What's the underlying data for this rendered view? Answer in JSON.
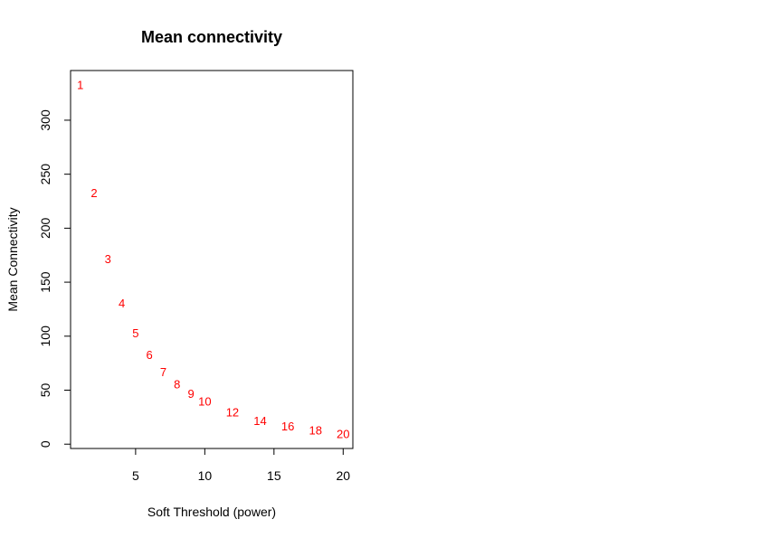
{
  "chart_data": {
    "type": "scatter",
    "title": "Mean connectivity",
    "xlabel": "Soft Threshold (power)",
    "ylabel": "Mean Connectivity",
    "xlim": [
      0.3,
      20.7
    ],
    "ylim": [
      -4,
      346
    ],
    "x_ticks": [
      5,
      10,
      15,
      20
    ],
    "y_ticks": [
      0,
      50,
      100,
      150,
      200,
      250,
      300
    ],
    "grid": false,
    "legend": "none",
    "marker": "text-label",
    "point_color": "#ff0000",
    "points": [
      {
        "x": 1,
        "y": 333,
        "label": "1"
      },
      {
        "x": 2,
        "y": 233,
        "label": "2"
      },
      {
        "x": 3,
        "y": 172,
        "label": "3"
      },
      {
        "x": 4,
        "y": 131,
        "label": "4"
      },
      {
        "x": 5,
        "y": 103,
        "label": "5"
      },
      {
        "x": 6,
        "y": 83,
        "label": "6"
      },
      {
        "x": 7,
        "y": 67,
        "label": "7"
      },
      {
        "x": 8,
        "y": 56,
        "label": "8"
      },
      {
        "x": 9,
        "y": 47,
        "label": "9"
      },
      {
        "x": 10,
        "y": 40,
        "label": "10"
      },
      {
        "x": 12,
        "y": 30,
        "label": "12"
      },
      {
        "x": 14,
        "y": 22,
        "label": "14"
      },
      {
        "x": 16,
        "y": 17,
        "label": "16"
      },
      {
        "x": 18,
        "y": 13,
        "label": "18"
      },
      {
        "x": 20,
        "y": 10,
        "label": "20"
      }
    ]
  }
}
